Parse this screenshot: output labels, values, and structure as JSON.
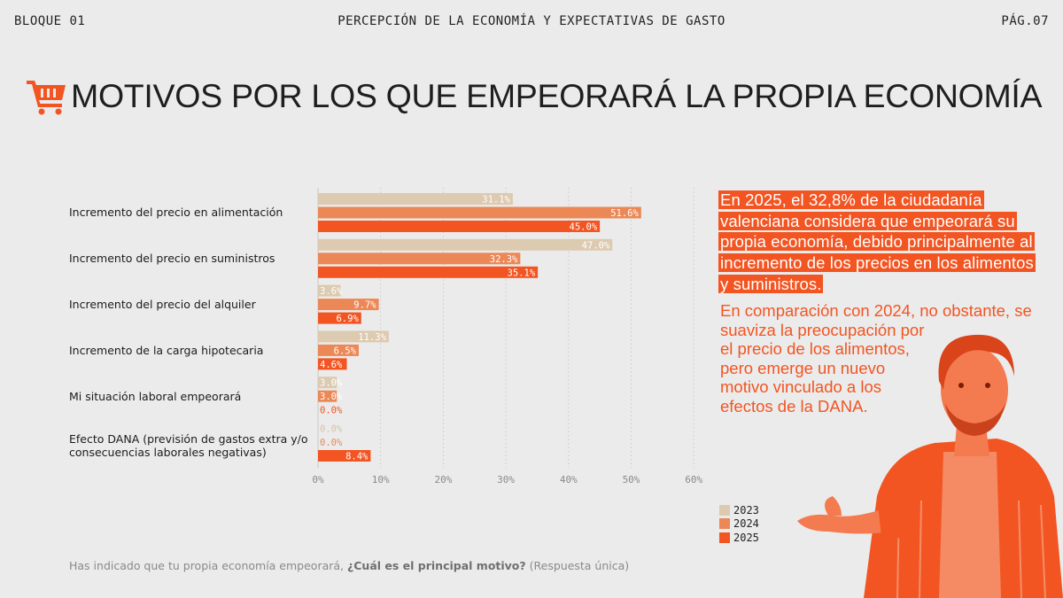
{
  "header": {
    "left": "BLOQUE 01",
    "center": "PERCEPCIÓN DE LA ECONOMÍA Y EXPECTATIVAS DE GASTO",
    "right": "PÁG.07"
  },
  "title": "MOTIVOS POR LOS QUE EMPEORARÁ LA PROPIA ECONOMÍA",
  "highlight_text": "En 2025, el 32,8% de la ciudadanía valenciana considera que empeorará su propia economía, debido principalmente al incremento de los precios en los alimentos y suministros.",
  "body_lines": [
    "En comparación con 2024, no obstante, se",
    "suaviza la preocupación por",
    "el precio de los alimentos,",
    "pero emerge un nuevo",
    "motivo vinculado a los",
    "efectos de la DANA."
  ],
  "footnote": {
    "prefix": "Has indicado que tu propia economía empeorará, ",
    "question": "¿Cuál es el principal motivo?",
    "suffix": " (Respuesta única)"
  },
  "colors": {
    "accent": "#f25522",
    "s2023": "#dccab1",
    "s2024": "#eb8856",
    "s2025": "#f25522",
    "background": "#ebebeb"
  },
  "icons": {
    "title_icon": "shopping-cart-icon"
  },
  "chart_data": {
    "type": "bar",
    "orientation": "horizontal",
    "categories": [
      "Incremento del precio en alimentación",
      "Incremento del precio en suministros",
      "Incremento del precio del alquiler",
      "Incremento de la carga hipotecaria",
      "Mi situación laboral empeorará",
      "Efecto DANA (previsión de gastos extra y/o consecuencias laborales negativas)"
    ],
    "series": [
      {
        "name": "2023",
        "values": [
          31.1,
          47.0,
          3.6,
          11.3,
          3.0,
          0.0
        ],
        "labels": [
          "31.1%",
          "47.0%",
          "3.6%",
          "11.3%",
          "3.0%",
          "0.0%"
        ]
      },
      {
        "name": "2024",
        "values": [
          51.6,
          32.3,
          9.7,
          6.5,
          3.0,
          0.0
        ],
        "labels": [
          "51.6%",
          "32.3%",
          "9.7%",
          "6.5%",
          "3.0%",
          "0.0%"
        ]
      },
      {
        "name": "2025",
        "values": [
          45.0,
          35.1,
          6.9,
          4.6,
          0.0,
          8.4
        ],
        "labels": [
          "45.0%",
          "35.1%",
          "6.9%",
          "4.6%",
          "0.0%",
          "8.4%"
        ]
      }
    ],
    "xlim": [
      0,
      60
    ],
    "ticks": [
      "0%",
      "10%",
      "20%",
      "30%",
      "40%",
      "50%",
      "60%"
    ],
    "grid": true,
    "legend": [
      "2023",
      "2024",
      "2025"
    ],
    "legend_position": "bottom-right"
  }
}
